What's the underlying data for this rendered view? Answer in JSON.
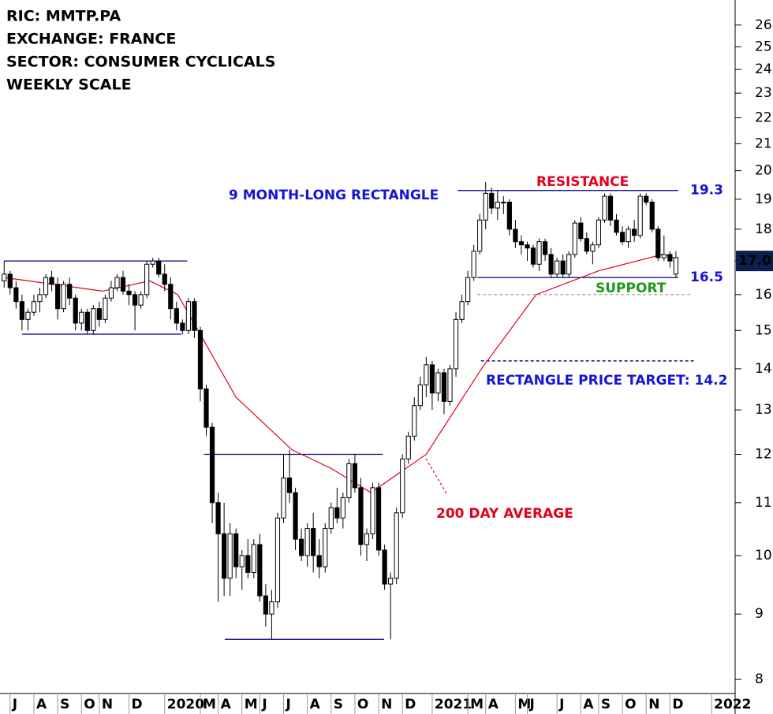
{
  "chart_data": {
    "type": "candlestick",
    "header": [
      "RIC: MMTP.PA",
      "EXCHANGE: FRANCE",
      "SECTOR: CONSUMER CYCLICALS",
      "WEEKLY SCALE"
    ],
    "log_scale": true,
    "ylim": [
      7.8,
      27.2
    ],
    "yticks": [
      8,
      9,
      10,
      11,
      12,
      13,
      14,
      15,
      16,
      17,
      18,
      19,
      20,
      21,
      22,
      23,
      24,
      25,
      26
    ],
    "xlim": [
      -0.7,
      122.7
    ],
    "xticks": [
      {
        "value": 1,
        "label": "J"
      },
      {
        "value": 5,
        "label": "A"
      },
      {
        "value": 9,
        "label": "S"
      },
      {
        "value": 13,
        "label": "O"
      },
      {
        "value": 16,
        "label": "N"
      },
      {
        "value": 21,
        "label": "D"
      },
      {
        "value": 27,
        "label": "2020"
      },
      {
        "value": 33,
        "label": "M"
      },
      {
        "value": 36,
        "label": "A"
      },
      {
        "value": 40,
        "label": "M"
      },
      {
        "value": 43,
        "label": "J"
      },
      {
        "value": 47,
        "label": "J"
      },
      {
        "value": 51,
        "label": "A"
      },
      {
        "value": 55,
        "label": "S"
      },
      {
        "value": 59,
        "label": "O"
      },
      {
        "value": 63,
        "label": "N"
      },
      {
        "value": 67,
        "label": "D"
      },
      {
        "value": 72,
        "label": "2021"
      },
      {
        "value": 78,
        "label": "M"
      },
      {
        "value": 81,
        "label": "A"
      },
      {
        "value": 86,
        "label": "M"
      },
      {
        "value": 88,
        "label": "J"
      },
      {
        "value": 93,
        "label": "J"
      },
      {
        "value": 97,
        "label": "A"
      },
      {
        "value": 100,
        "label": "S"
      },
      {
        "value": 104,
        "label": "O"
      },
      {
        "value": 108,
        "label": "N"
      },
      {
        "value": 112,
        "label": "D"
      },
      {
        "value": 119,
        "label": "2022"
      }
    ],
    "candles": [
      [
        16.4,
        17.0,
        16.2,
        16.6
      ],
      [
        16.6,
        16.7,
        16.0,
        16.2
      ],
      [
        16.2,
        16.4,
        15.6,
        15.8
      ],
      [
        15.8,
        16.0,
        15.0,
        15.3
      ],
      [
        15.3,
        15.6,
        15.0,
        15.5
      ],
      [
        15.5,
        16.0,
        15.4,
        15.8
      ],
      [
        15.8,
        16.2,
        15.5,
        16.0
      ],
      [
        16.0,
        16.6,
        15.9,
        16.5
      ],
      [
        16.5,
        16.7,
        16.1,
        16.3
      ],
      [
        16.3,
        16.5,
        15.3,
        15.6
      ],
      [
        15.6,
        16.4,
        15.5,
        16.3
      ],
      [
        16.3,
        16.5,
        15.7,
        15.9
      ],
      [
        15.9,
        16.0,
        15.0,
        15.2
      ],
      [
        15.2,
        15.6,
        15.0,
        15.5
      ],
      [
        15.5,
        15.6,
        14.9,
        15.0
      ],
      [
        15.0,
        15.7,
        14.9,
        15.6
      ],
      [
        15.6,
        15.8,
        15.1,
        15.3
      ],
      [
        15.3,
        16.0,
        15.2,
        15.9
      ],
      [
        15.9,
        16.4,
        15.8,
        16.2
      ],
      [
        16.2,
        16.6,
        16.1,
        16.5
      ],
      [
        16.5,
        16.7,
        16.0,
        16.1
      ],
      [
        16.1,
        16.3,
        15.7,
        16.0
      ],
      [
        16.0,
        16.1,
        15.0,
        15.7
      ],
      [
        15.7,
        16.1,
        15.6,
        16.0
      ],
      [
        16.0,
        17.0,
        15.9,
        16.9
      ],
      [
        16.9,
        17.1,
        16.8,
        17.0
      ],
      [
        17.0,
        17.1,
        16.5,
        16.6
      ],
      [
        16.6,
        16.9,
        16.1,
        16.3
      ],
      [
        16.3,
        16.5,
        15.3,
        15.6
      ],
      [
        15.6,
        15.8,
        15.0,
        15.2
      ],
      [
        15.2,
        15.3,
        14.9,
        15.0
      ],
      [
        15.0,
        15.9,
        14.9,
        15.8
      ],
      [
        15.8,
        15.9,
        14.8,
        15.0
      ],
      [
        15.0,
        15.1,
        13.2,
        13.5
      ],
      [
        13.5,
        13.6,
        12.4,
        12.6
      ],
      [
        12.6,
        12.7,
        10.6,
        11.0
      ],
      [
        11.0,
        11.2,
        9.2,
        10.4
      ],
      [
        10.4,
        11.0,
        9.3,
        9.6
      ],
      [
        9.6,
        10.6,
        9.3,
        10.4
      ],
      [
        10.4,
        10.5,
        9.6,
        9.8
      ],
      [
        9.8,
        10.1,
        9.4,
        10.0
      ],
      [
        10.0,
        10.3,
        9.6,
        9.7
      ],
      [
        9.7,
        10.3,
        9.6,
        10.2
      ],
      [
        10.2,
        10.4,
        9.2,
        9.3
      ],
      [
        9.3,
        9.5,
        8.8,
        9.0
      ],
      [
        9.0,
        9.4,
        8.6,
        9.2
      ],
      [
        9.2,
        10.8,
        9.1,
        10.7
      ],
      [
        10.7,
        12.0,
        10.6,
        11.5
      ],
      [
        11.5,
        12.1,
        11.0,
        11.2
      ],
      [
        11.2,
        11.3,
        10.1,
        10.3
      ],
      [
        10.3,
        10.5,
        9.9,
        10.0
      ],
      [
        10.0,
        10.6,
        9.8,
        10.5
      ],
      [
        10.5,
        10.8,
        9.7,
        10.0
      ],
      [
        10.0,
        10.3,
        9.6,
        9.8
      ],
      [
        9.8,
        10.6,
        9.7,
        10.5
      ],
      [
        10.5,
        11.0,
        10.4,
        10.9
      ],
      [
        10.9,
        11.3,
        10.6,
        10.7
      ],
      [
        10.7,
        11.2,
        10.5,
        11.1
      ],
      [
        11.1,
        11.9,
        11.0,
        11.8
      ],
      [
        11.8,
        12.0,
        11.2,
        11.3
      ],
      [
        11.3,
        11.5,
        10.0,
        10.2
      ],
      [
        10.2,
        10.5,
        9.9,
        10.4
      ],
      [
        10.4,
        11.4,
        10.3,
        11.3
      ],
      [
        11.3,
        11.4,
        10.0,
        10.1
      ],
      [
        10.1,
        10.2,
        9.4,
        9.5
      ],
      [
        9.5,
        9.7,
        8.6,
        9.6
      ],
      [
        9.6,
        10.9,
        9.5,
        10.8
      ],
      [
        10.8,
        12.0,
        10.7,
        11.9
      ],
      [
        11.9,
        12.5,
        11.8,
        12.4
      ],
      [
        12.4,
        13.3,
        12.3,
        13.1
      ],
      [
        13.1,
        13.8,
        13.0,
        13.6
      ],
      [
        13.6,
        14.3,
        13.3,
        14.1
      ],
      [
        14.1,
        14.2,
        13.0,
        13.4
      ],
      [
        13.4,
        14.0,
        13.2,
        13.9
      ],
      [
        13.9,
        14.0,
        12.9,
        13.2
      ],
      [
        13.2,
        14.1,
        13.1,
        14.0
      ],
      [
        14.0,
        15.5,
        13.8,
        15.3
      ],
      [
        15.3,
        16.0,
        15.2,
        15.8
      ],
      [
        15.8,
        16.7,
        15.7,
        16.5
      ],
      [
        16.5,
        17.5,
        16.4,
        17.3
      ],
      [
        17.3,
        18.5,
        17.2,
        18.3
      ],
      [
        18.3,
        19.6,
        18.0,
        19.2
      ],
      [
        19.2,
        19.4,
        18.5,
        18.7
      ],
      [
        18.7,
        19.3,
        18.3,
        18.9
      ],
      [
        18.9,
        19.1,
        18.5,
        18.9
      ],
      [
        18.9,
        19.0,
        17.8,
        18.0
      ],
      [
        18.0,
        18.3,
        17.4,
        17.6
      ],
      [
        17.6,
        17.8,
        17.2,
        17.5
      ],
      [
        17.5,
        17.6,
        17.0,
        17.4
      ],
      [
        17.4,
        17.5,
        16.8,
        16.9
      ],
      [
        16.9,
        17.7,
        16.7,
        17.6
      ],
      [
        17.6,
        17.7,
        17.0,
        17.2
      ],
      [
        17.2,
        17.4,
        16.5,
        16.6
      ],
      [
        16.6,
        17.1,
        16.5,
        17.0
      ],
      [
        17.0,
        17.2,
        16.5,
        16.6
      ],
      [
        16.6,
        17.3,
        16.5,
        17.2
      ],
      [
        17.2,
        18.3,
        17.1,
        18.2
      ],
      [
        18.2,
        18.4,
        17.6,
        17.7
      ],
      [
        17.7,
        17.9,
        17.2,
        17.3
      ],
      [
        17.3,
        17.6,
        16.9,
        17.5
      ],
      [
        17.5,
        18.4,
        17.4,
        18.3
      ],
      [
        18.3,
        19.2,
        18.2,
        19.1
      ],
      [
        19.1,
        19.2,
        18.1,
        18.3
      ],
      [
        18.3,
        18.5,
        17.8,
        17.9
      ],
      [
        17.9,
        18.1,
        17.5,
        17.6
      ],
      [
        17.6,
        18.1,
        17.4,
        18.0
      ],
      [
        18.0,
        18.3,
        17.6,
        17.8
      ],
      [
        17.8,
        19.2,
        17.7,
        19.1
      ],
      [
        19.1,
        19.2,
        18.8,
        18.9
      ],
      [
        18.9,
        19.0,
        17.9,
        18.0
      ],
      [
        18.0,
        18.1,
        17.0,
        17.1
      ],
      [
        17.1,
        17.8,
        17.0,
        17.2
      ],
      [
        17.2,
        17.3,
        16.8,
        17.0
      ],
      [
        16.6,
        17.3,
        16.5,
        17.1
      ]
    ],
    "up_color": "#ffffff",
    "down_color": "#000000",
    "moving_average": {
      "label": "200 DAY AVERAGE",
      "color": "#e3001b",
      "x": [
        0,
        16.6,
        24.5,
        29.2,
        39,
        48.4,
        55,
        61.7,
        71,
        80.3,
        89.5,
        100,
        110.7,
        112.7
      ],
      "values": [
        16.5,
        16.1,
        16.4,
        16.0,
        13.3,
        12.1,
        11.7,
        11.2,
        12.0,
        14.0,
        16.0,
        16.7,
        17.2,
        17.1
      ]
    },
    "levels": [
      {
        "value": 19.3,
        "from": 76.3,
        "to": 113.4,
        "color": "#00007f",
        "dashed": false
      },
      {
        "value": 16.5,
        "from": 79.6,
        "to": 113.4,
        "color": "#00007f",
        "dashed": false
      },
      {
        "value": 16.0,
        "from": 79.6,
        "to": 115.4,
        "color": "#aaaaaa",
        "dashed": true
      },
      {
        "value": 14.2,
        "from": 80.2,
        "to": 116,
        "color": "#00007f",
        "dashed": true
      },
      {
        "value": 17.0,
        "from": 0,
        "to": 30.8,
        "color": "#00007f",
        "dashed": false
      },
      {
        "value": 14.9,
        "from": 3,
        "to": 29.8,
        "color": "#00007f",
        "dashed": false
      },
      {
        "value": 12.0,
        "from": 33.6,
        "to": 63.7,
        "color": "#00007f",
        "dashed": false
      },
      {
        "value": 8.6,
        "from": 37.1,
        "to": 63.9,
        "color": "#00007f",
        "dashed": false
      }
    ],
    "annotations": {
      "rectangle": "9 MONTH-LONG RECTANGLE",
      "resistance": "RESISTANCE",
      "support": "SUPPORT",
      "target": "RECTANGLE PRICE TARGET: 14.2"
    },
    "last_price": {
      "value": 17.0,
      "label": "17.0"
    }
  }
}
